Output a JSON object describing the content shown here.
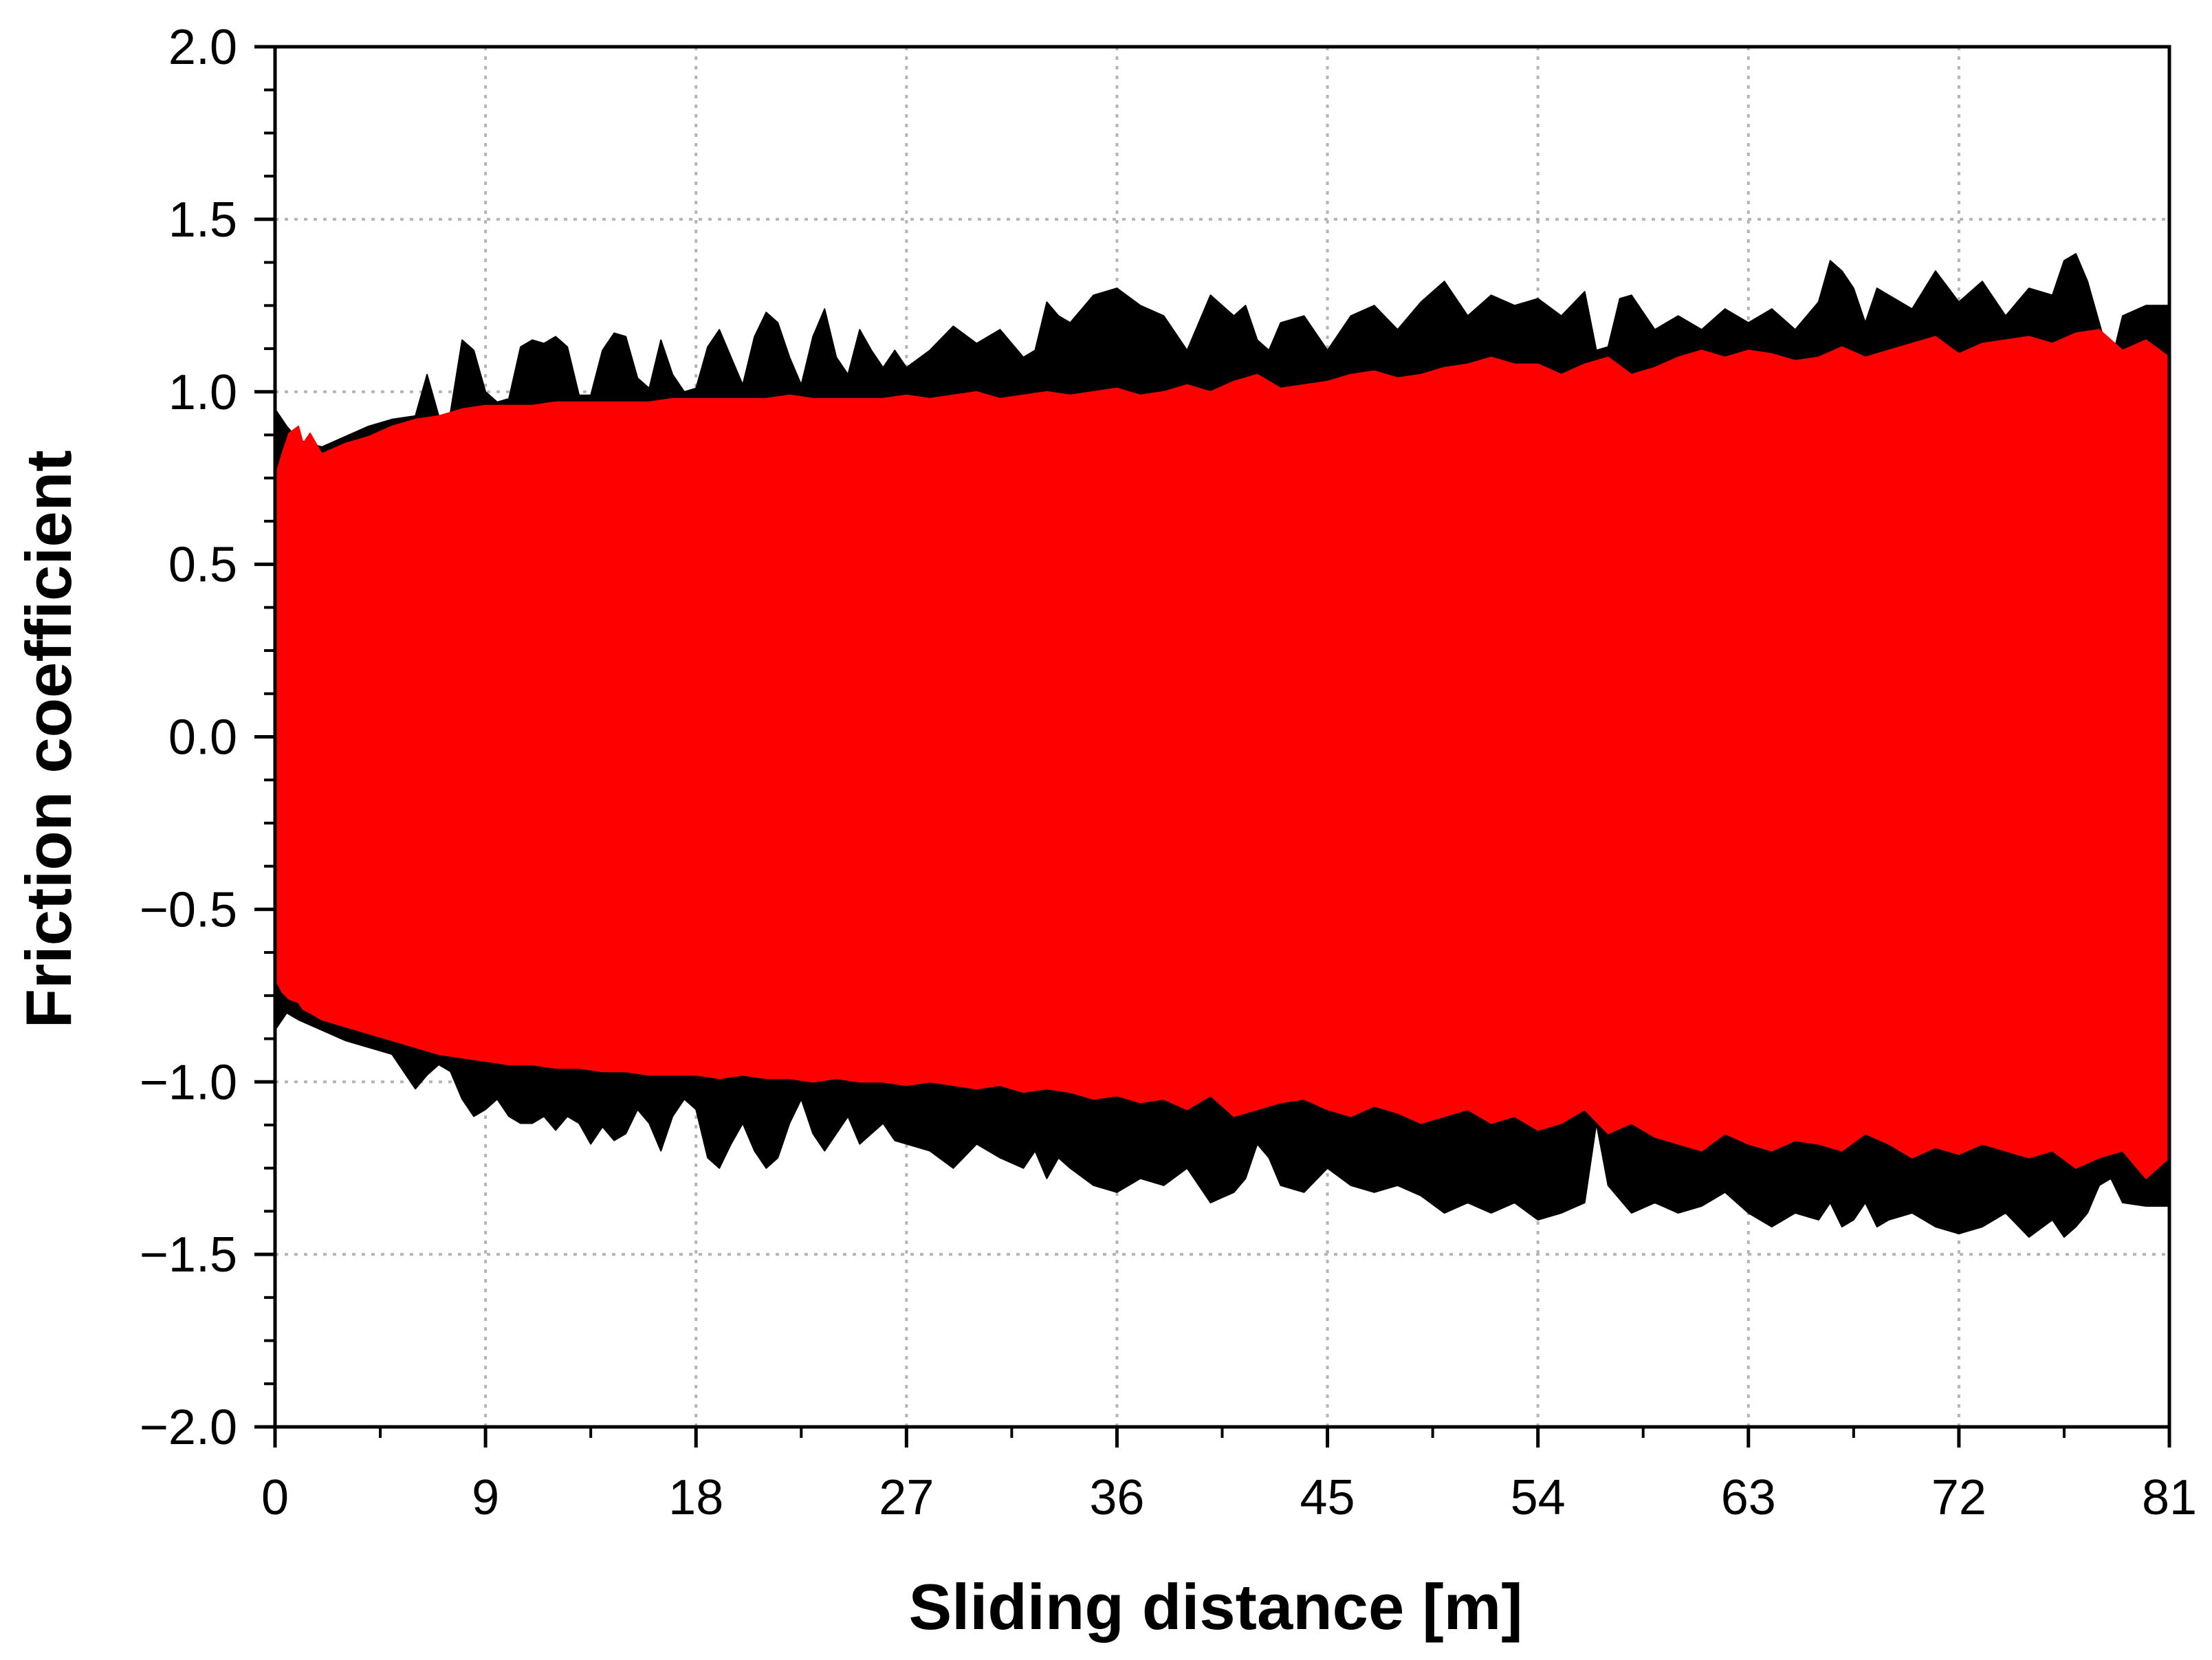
{
  "chart_data": {
    "type": "area",
    "title": "",
    "xlabel": "Sliding distance [m]",
    "ylabel": "Friction coefficient",
    "xlim": [
      0,
      81
    ],
    "ylim": [
      -2.0,
      2.0
    ],
    "xticks": [
      0,
      9,
      18,
      27,
      36,
      45,
      54,
      63,
      72,
      81
    ],
    "xtick_labels": [
      "0",
      "9",
      "18",
      "27",
      "36",
      "45",
      "54",
      "63",
      "72",
      "81"
    ],
    "yticks": [
      2.0,
      1.5,
      1.0,
      0.5,
      0.0,
      -0.5,
      -1.0,
      -1.5,
      -2.0
    ],
    "ytick_labels": [
      "2.0",
      "1.5",
      "1.0",
      "0.5",
      "0.0",
      "−0.5",
      "−1.0",
      "−1.5",
      "−2.0"
    ],
    "grid": true,
    "legend": false,
    "colors": {
      "series_a": "#000000",
      "series_b": "#ff0000",
      "grid": "#b5b5b5",
      "frame": "#000000"
    },
    "series": [
      {
        "color": "#000000",
        "x": [
          0,
          0.5,
          1,
          2,
          3,
          4,
          5,
          6,
          6.5,
          7,
          7.5,
          8,
          8.5,
          9,
          9.5,
          10,
          10.5,
          11,
          11.5,
          12,
          12.5,
          13,
          13.5,
          14,
          14.5,
          15,
          15.5,
          16,
          16.5,
          17,
          17.5,
          18,
          18.5,
          19,
          19.5,
          20,
          20.5,
          21,
          21.5,
          22,
          22.5,
          23,
          23.5,
          24,
          24.5,
          25,
          25.5,
          26,
          26.5,
          27,
          28,
          29,
          30,
          31,
          32,
          32.5,
          33,
          33.5,
          34,
          35,
          36,
          37,
          38,
          39,
          40,
          41,
          41.5,
          42,
          42.5,
          43,
          44,
          45,
          46,
          47,
          48,
          49,
          50,
          51,
          52,
          53,
          54,
          55,
          56,
          56.5,
          57,
          57.5,
          58,
          59,
          60,
          61,
          62,
          63,
          64,
          65,
          66,
          66.5,
          67,
          67.5,
          68,
          68.5,
          69,
          70,
          71,
          72,
          73,
          74,
          75,
          76,
          76.5,
          77,
          77.5,
          78,
          78.5,
          79,
          80,
          81
        ],
        "upper": [
          0.95,
          0.9,
          0.86,
          0.84,
          0.87,
          0.9,
          0.92,
          0.93,
          1.05,
          0.93,
          0.94,
          1.15,
          1.12,
          1.0,
          0.97,
          0.98,
          1.13,
          1.15,
          1.14,
          1.16,
          1.13,
          0.99,
          0.99,
          1.12,
          1.17,
          1.16,
          1.04,
          1.01,
          1.15,
          1.05,
          1.0,
          1.01,
          1.13,
          1.18,
          1.1,
          1.02,
          1.16,
          1.23,
          1.2,
          1.1,
          1.02,
          1.16,
          1.24,
          1.1,
          1.05,
          1.18,
          1.12,
          1.07,
          1.12,
          1.07,
          1.12,
          1.19,
          1.14,
          1.18,
          1.1,
          1.12,
          1.26,
          1.22,
          1.2,
          1.28,
          1.3,
          1.25,
          1.22,
          1.12,
          1.28,
          1.22,
          1.25,
          1.15,
          1.12,
          1.2,
          1.22,
          1.12,
          1.22,
          1.25,
          1.18,
          1.26,
          1.32,
          1.22,
          1.28,
          1.25,
          1.27,
          1.22,
          1.29,
          1.12,
          1.13,
          1.27,
          1.28,
          1.18,
          1.22,
          1.18,
          1.24,
          1.2,
          1.24,
          1.18,
          1.26,
          1.38,
          1.35,
          1.3,
          1.2,
          1.3,
          1.28,
          1.24,
          1.35,
          1.26,
          1.32,
          1.22,
          1.3,
          1.28,
          1.38,
          1.4,
          1.32,
          1.2,
          1.08,
          1.22,
          1.25,
          1.25
        ],
        "lower": [
          -0.85,
          -0.8,
          -0.82,
          -0.85,
          -0.88,
          -0.9,
          -0.92,
          -1.02,
          -0.98,
          -0.95,
          -0.97,
          -1.05,
          -1.1,
          -1.08,
          -1.05,
          -1.1,
          -1.12,
          -1.12,
          -1.1,
          -1.14,
          -1.1,
          -1.12,
          -1.18,
          -1.13,
          -1.17,
          -1.15,
          -1.08,
          -1.12,
          -1.2,
          -1.1,
          -1.05,
          -1.08,
          -1.22,
          -1.25,
          -1.18,
          -1.12,
          -1.2,
          -1.25,
          -1.22,
          -1.12,
          -1.05,
          -1.15,
          -1.2,
          -1.15,
          -1.1,
          -1.18,
          -1.15,
          -1.12,
          -1.17,
          -1.18,
          -1.2,
          -1.25,
          -1.18,
          -1.22,
          -1.25,
          -1.2,
          -1.28,
          -1.22,
          -1.25,
          -1.3,
          -1.32,
          -1.28,
          -1.3,
          -1.25,
          -1.35,
          -1.32,
          -1.28,
          -1.18,
          -1.22,
          -1.3,
          -1.32,
          -1.25,
          -1.3,
          -1.32,
          -1.3,
          -1.33,
          -1.38,
          -1.35,
          -1.38,
          -1.35,
          -1.4,
          -1.38,
          -1.35,
          -1.12,
          -1.3,
          -1.34,
          -1.38,
          -1.35,
          -1.38,
          -1.36,
          -1.32,
          -1.38,
          -1.42,
          -1.38,
          -1.4,
          -1.35,
          -1.42,
          -1.4,
          -1.35,
          -1.42,
          -1.4,
          -1.38,
          -1.42,
          -1.44,
          -1.42,
          -1.38,
          -1.45,
          -1.4,
          -1.45,
          -1.42,
          -1.38,
          -1.3,
          -1.28,
          -1.35,
          -1.36,
          -1.36
        ]
      },
      {
        "color": "#ff0000",
        "x": [
          0,
          0.3,
          0.6,
          1,
          1.2,
          1.5,
          2,
          3,
          4,
          5,
          6,
          7,
          8,
          9,
          10,
          11,
          12,
          13,
          14,
          15,
          16,
          17,
          18,
          19,
          20,
          21,
          22,
          23,
          24,
          25,
          26,
          27,
          28,
          29,
          30,
          31,
          32,
          33,
          34,
          35,
          36,
          37,
          38,
          39,
          40,
          41,
          42,
          43,
          44,
          45,
          46,
          47,
          48,
          49,
          50,
          51,
          52,
          53,
          54,
          55,
          56,
          57,
          58,
          59,
          60,
          61,
          62,
          63,
          64,
          65,
          66,
          67,
          68,
          69,
          70,
          71,
          72,
          73,
          74,
          75,
          76,
          77,
          78,
          79,
          80,
          81
        ],
        "upper": [
          0.75,
          0.82,
          0.88,
          0.9,
          0.85,
          0.88,
          0.82,
          0.85,
          0.87,
          0.9,
          0.92,
          0.93,
          0.95,
          0.96,
          0.96,
          0.96,
          0.97,
          0.97,
          0.97,
          0.97,
          0.97,
          0.98,
          0.98,
          0.98,
          0.98,
          0.98,
          0.99,
          0.98,
          0.98,
          0.98,
          0.98,
          0.99,
          0.98,
          0.99,
          1.0,
          0.98,
          0.99,
          1.0,
          0.99,
          1.0,
          1.01,
          0.99,
          1.0,
          1.02,
          1.0,
          1.03,
          1.05,
          1.01,
          1.02,
          1.03,
          1.05,
          1.06,
          1.04,
          1.05,
          1.07,
          1.08,
          1.1,
          1.08,
          1.08,
          1.05,
          1.08,
          1.1,
          1.05,
          1.07,
          1.1,
          1.12,
          1.1,
          1.12,
          1.11,
          1.09,
          1.1,
          1.13,
          1.1,
          1.12,
          1.14,
          1.16,
          1.11,
          1.14,
          1.15,
          1.16,
          1.14,
          1.17,
          1.18,
          1.12,
          1.15,
          1.1
        ],
        "lower": [
          -0.7,
          -0.74,
          -0.76,
          -0.77,
          -0.79,
          -0.8,
          -0.82,
          -0.84,
          -0.86,
          -0.88,
          -0.9,
          -0.92,
          -0.93,
          -0.94,
          -0.95,
          -0.95,
          -0.96,
          -0.96,
          -0.97,
          -0.97,
          -0.98,
          -0.98,
          -0.98,
          -0.99,
          -0.98,
          -0.99,
          -0.99,
          -1.0,
          -0.99,
          -1.0,
          -1.0,
          -1.01,
          -1.0,
          -1.01,
          -1.02,
          -1.01,
          -1.03,
          -1.02,
          -1.03,
          -1.05,
          -1.04,
          -1.06,
          -1.05,
          -1.08,
          -1.04,
          -1.1,
          -1.08,
          -1.06,
          -1.05,
          -1.08,
          -1.1,
          -1.07,
          -1.09,
          -1.12,
          -1.1,
          -1.08,
          -1.12,
          -1.1,
          -1.14,
          -1.12,
          -1.08,
          -1.15,
          -1.12,
          -1.16,
          -1.18,
          -1.2,
          -1.15,
          -1.18,
          -1.2,
          -1.17,
          -1.18,
          -1.2,
          -1.15,
          -1.18,
          -1.22,
          -1.19,
          -1.21,
          -1.18,
          -1.2,
          -1.22,
          -1.2,
          -1.25,
          -1.22,
          -1.2,
          -1.28,
          -1.22
        ]
      }
    ]
  }
}
